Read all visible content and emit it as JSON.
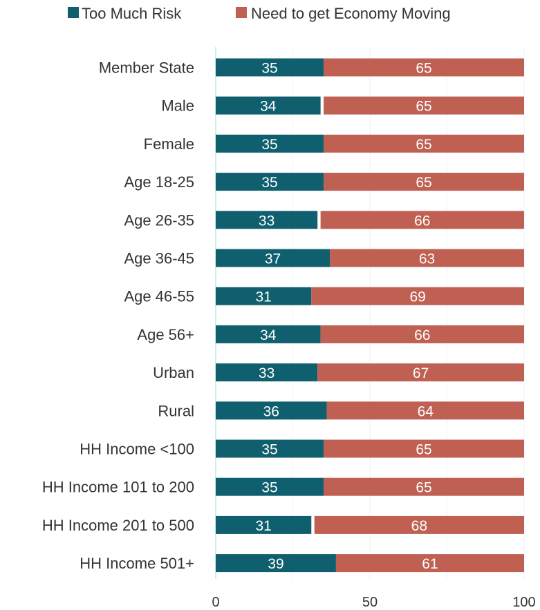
{
  "chart_data": {
    "type": "bar",
    "orientation": "horizontal",
    "title": "",
    "xlabel": "",
    "ylabel": "",
    "xlim": [
      0,
      100
    ],
    "x_ticks": [
      "0",
      "50",
      "100"
    ],
    "grid": true,
    "legend_position": "top",
    "categories": [
      "Member State",
      "Male",
      "Female",
      "Age 18-25",
      "Age 26-35",
      "Age 36-45",
      "Age 46-55",
      "Age 56+",
      "Urban",
      "Rural",
      "HH Income <100",
      "HH Income 101 to 200",
      "HH Income 201 to 500",
      "HH Income 501+"
    ],
    "series": [
      {
        "name": "Too Much Risk",
        "color": "#0f5f6e",
        "values": [
          35,
          34,
          35,
          35,
          33,
          37,
          31,
          34,
          33,
          36,
          35,
          35,
          31,
          39
        ]
      },
      {
        "name": "Need to get Economy Moving",
        "color": "#bf6053",
        "values": [
          65,
          65,
          65,
          65,
          66,
          63,
          69,
          66,
          67,
          64,
          65,
          65,
          68,
          61
        ]
      }
    ]
  }
}
